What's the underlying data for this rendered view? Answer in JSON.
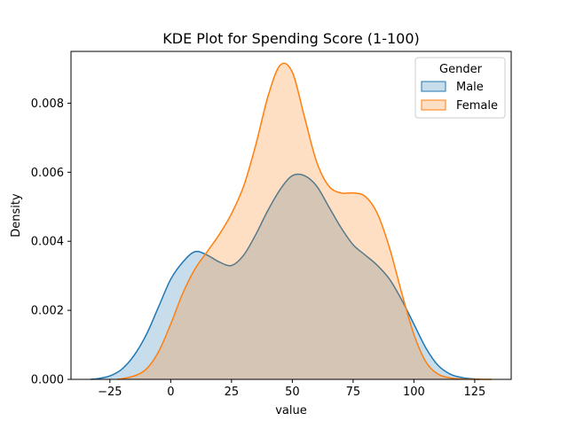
{
  "chart_data": {
    "type": "area",
    "title": "KDE Plot for Spending Score (1-100)",
    "xlabel": "value",
    "ylabel": "Density",
    "xlim": [
      -41,
      140
    ],
    "ylim": [
      0,
      0.0095
    ],
    "x_ticks": [
      -25,
      0,
      25,
      50,
      75,
      100,
      125
    ],
    "x_tick_labels": [
      "−25",
      "0",
      "25",
      "50",
      "75",
      "100",
      "125"
    ],
    "y_ticks": [
      0,
      0.002,
      0.004,
      0.006,
      0.008
    ],
    "y_tick_labels": [
      "0.000",
      "0.002",
      "0.004",
      "0.006",
      "0.008"
    ],
    "grid": false,
    "legend": {
      "title": "Gender",
      "placement": "top-right"
    },
    "series": [
      {
        "name": "Male",
        "color": "#1f77b4",
        "fill": "#1f77b4",
        "fill_opacity": 0.25,
        "points": [
          [
            -33,
            0
          ],
          [
            -30,
            2e-05
          ],
          [
            -25,
            0.0001
          ],
          [
            -20,
            0.0003
          ],
          [
            -15,
            0.0007
          ],
          [
            -10,
            0.0013
          ],
          [
            -5,
            0.0021
          ],
          [
            0,
            0.0029
          ],
          [
            5,
            0.0034
          ],
          [
            10,
            0.0037
          ],
          [
            15,
            0.0036
          ],
          [
            20,
            0.0034
          ],
          [
            25,
            0.0033
          ],
          [
            30,
            0.0036
          ],
          [
            35,
            0.0042
          ],
          [
            40,
            0.0049
          ],
          [
            45,
            0.0055
          ],
          [
            50,
            0.0059
          ],
          [
            55,
            0.0059
          ],
          [
            60,
            0.0056
          ],
          [
            65,
            0.005
          ],
          [
            70,
            0.0044
          ],
          [
            75,
            0.0039
          ],
          [
            80,
            0.0036
          ],
          [
            85,
            0.0033
          ],
          [
            90,
            0.0029
          ],
          [
            95,
            0.0023
          ],
          [
            100,
            0.0016
          ],
          [
            105,
            0.0009
          ],
          [
            110,
            0.0004
          ],
          [
            115,
            0.00015
          ],
          [
            120,
            5e-05
          ],
          [
            125,
            1e-05
          ],
          [
            127,
            0
          ]
        ]
      },
      {
        "name": "Female",
        "color": "#ff7f0e",
        "fill": "#ff7f0e",
        "fill_opacity": 0.25,
        "points": [
          [
            -22,
            0
          ],
          [
            -20,
            2e-05
          ],
          [
            -15,
            0.0001
          ],
          [
            -10,
            0.0003
          ],
          [
            -5,
            0.0008
          ],
          [
            0,
            0.0016
          ],
          [
            5,
            0.0025
          ],
          [
            10,
            0.0032
          ],
          [
            15,
            0.0037
          ],
          [
            20,
            0.0042
          ],
          [
            25,
            0.0048
          ],
          [
            30,
            0.0056
          ],
          [
            35,
            0.0068
          ],
          [
            40,
            0.0082
          ],
          [
            45,
            0.0091
          ],
          [
            50,
            0.0089
          ],
          [
            55,
            0.0076
          ],
          [
            60,
            0.0063
          ],
          [
            65,
            0.0056
          ],
          [
            70,
            0.0054
          ],
          [
            75,
            0.0054
          ],
          [
            80,
            0.0053
          ],
          [
            85,
            0.0048
          ],
          [
            90,
            0.0038
          ],
          [
            95,
            0.0025
          ],
          [
            100,
            0.0013
          ],
          [
            105,
            0.0005
          ],
          [
            110,
            0.00015
          ],
          [
            115,
            4e-05
          ],
          [
            120,
            1e-05
          ],
          [
            132,
            0
          ]
        ]
      }
    ]
  }
}
